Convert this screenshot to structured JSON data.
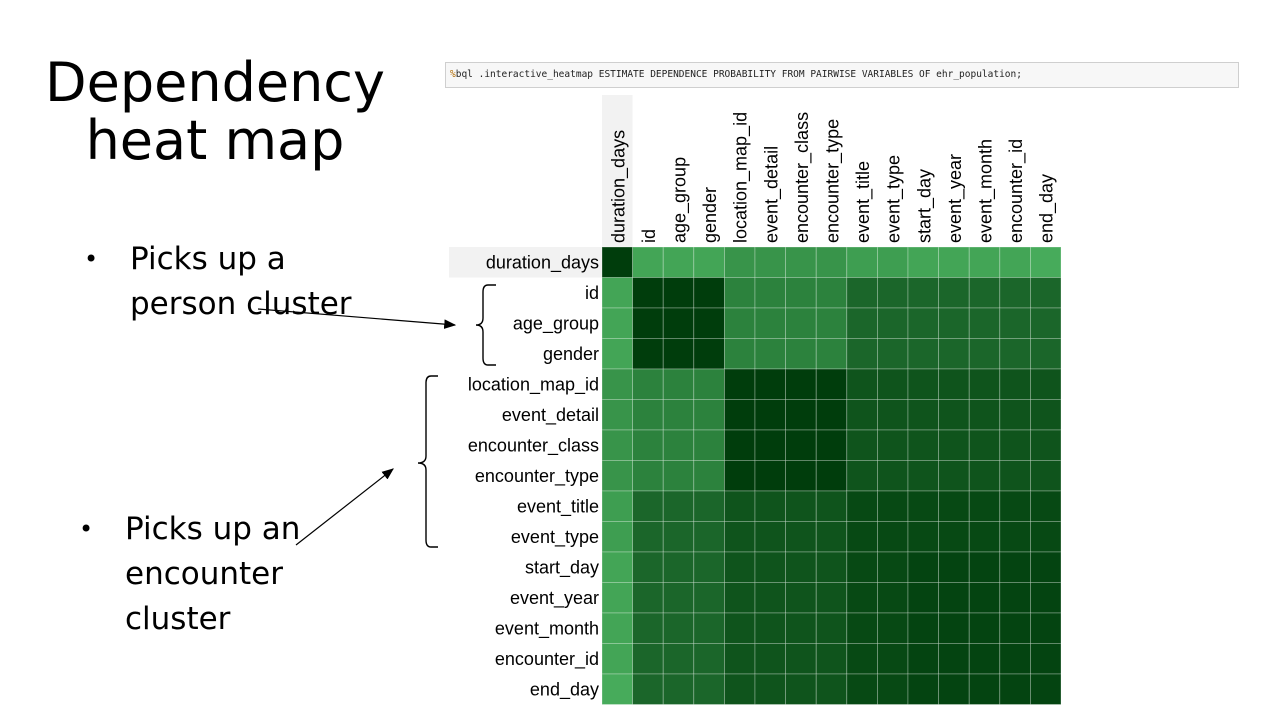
{
  "slide": {
    "title": "Dependency heat map",
    "bullet1": "Picks up a person cluster",
    "bullet2": "Picks up an encounter cluster",
    "bullet_glyph": "•"
  },
  "query": {
    "prefix": "%",
    "text": "bql .interactive_heatmap ESTIMATE DEPENDENCE PROBABILITY FROM PAIRWISE VARIABLES OF ehr_population;"
  },
  "chart_data": {
    "type": "heatmap",
    "variables": [
      "duration_days",
      "id",
      "age_group",
      "gender",
      "location_map_id",
      "event_detail",
      "encounter_class",
      "encounter_type",
      "event_title",
      "event_type",
      "start_day",
      "event_year",
      "event_month",
      "encounter_id",
      "end_day"
    ],
    "matrix": [
      [
        1.0,
        0.55,
        0.55,
        0.55,
        0.62,
        0.62,
        0.62,
        0.62,
        0.58,
        0.58,
        0.55,
        0.55,
        0.55,
        0.55,
        0.52
      ],
      [
        0.55,
        1.0,
        1.0,
        1.0,
        0.7,
        0.7,
        0.7,
        0.7,
        0.82,
        0.82,
        0.82,
        0.82,
        0.82,
        0.82,
        0.82
      ],
      [
        0.55,
        1.0,
        1.0,
        1.0,
        0.7,
        0.7,
        0.7,
        0.7,
        0.82,
        0.82,
        0.82,
        0.82,
        0.82,
        0.82,
        0.82
      ],
      [
        0.55,
        1.0,
        1.0,
        1.0,
        0.7,
        0.7,
        0.7,
        0.7,
        0.82,
        0.82,
        0.82,
        0.82,
        0.82,
        0.82,
        0.82
      ],
      [
        0.62,
        0.7,
        0.7,
        0.7,
        1.0,
        1.0,
        1.0,
        1.0,
        0.9,
        0.9,
        0.9,
        0.9,
        0.9,
        0.9,
        0.9
      ],
      [
        0.62,
        0.7,
        0.7,
        0.7,
        1.0,
        1.0,
        1.0,
        1.0,
        0.9,
        0.9,
        0.9,
        0.9,
        0.9,
        0.9,
        0.9
      ],
      [
        0.62,
        0.7,
        0.7,
        0.7,
        1.0,
        1.0,
        1.0,
        1.0,
        0.9,
        0.9,
        0.9,
        0.9,
        0.9,
        0.9,
        0.9
      ],
      [
        0.62,
        0.7,
        0.7,
        0.7,
        1.0,
        1.0,
        1.0,
        1.0,
        0.9,
        0.9,
        0.9,
        0.9,
        0.9,
        0.9,
        0.9
      ],
      [
        0.58,
        0.82,
        0.82,
        0.82,
        0.9,
        0.9,
        0.9,
        0.9,
        0.95,
        0.95,
        0.95,
        0.95,
        0.95,
        0.95,
        0.95
      ],
      [
        0.58,
        0.82,
        0.82,
        0.82,
        0.9,
        0.9,
        0.9,
        0.9,
        0.95,
        0.95,
        0.95,
        0.95,
        0.95,
        0.95,
        0.95
      ],
      [
        0.55,
        0.82,
        0.82,
        0.82,
        0.9,
        0.9,
        0.9,
        0.9,
        0.95,
        0.95,
        0.97,
        0.97,
        0.97,
        0.97,
        0.97
      ],
      [
        0.55,
        0.82,
        0.82,
        0.82,
        0.9,
        0.9,
        0.9,
        0.9,
        0.95,
        0.95,
        0.97,
        0.97,
        0.97,
        0.97,
        0.97
      ],
      [
        0.55,
        0.82,
        0.82,
        0.82,
        0.9,
        0.9,
        0.9,
        0.9,
        0.95,
        0.95,
        0.97,
        0.97,
        0.97,
        0.97,
        0.97
      ],
      [
        0.55,
        0.82,
        0.82,
        0.82,
        0.9,
        0.9,
        0.9,
        0.9,
        0.95,
        0.95,
        0.97,
        0.97,
        0.97,
        0.97,
        0.97
      ],
      [
        0.52,
        0.82,
        0.82,
        0.82,
        0.9,
        0.9,
        0.9,
        0.9,
        0.95,
        0.95,
        0.97,
        0.97,
        0.97,
        0.97,
        0.97
      ]
    ],
    "color_low": "#4ab05e",
    "color_high": "#003d0c",
    "grid": true,
    "highlight_row_label_bg": "#f2f2f2"
  }
}
